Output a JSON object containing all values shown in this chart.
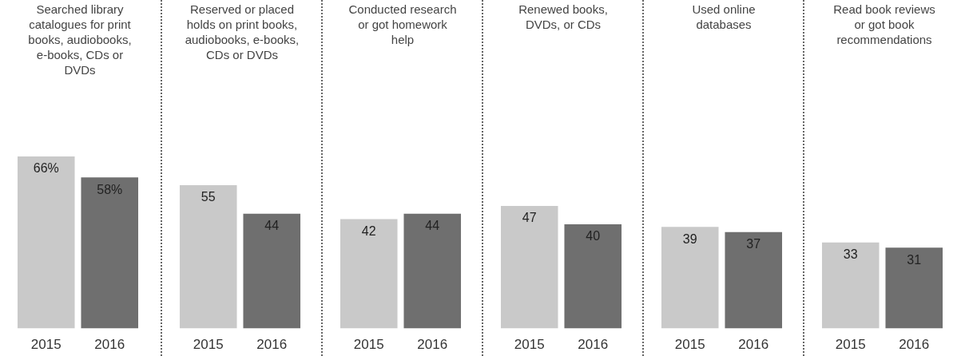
{
  "chart_data": [
    {
      "type": "bar",
      "title": "Searched library catalogues for print books, audiobooks, e-books, CDs or DVDs",
      "categories": [
        "2015",
        "2016"
      ],
      "values": [
        66,
        58
      ],
      "value_labels": [
        "66%",
        "58%"
      ],
      "colors": [
        "#c9c9c9",
        "#6f6f6f"
      ]
    },
    {
      "type": "bar",
      "title": "Reserved or placed holds on print books, audiobooks, e-books, CDs or DVDs",
      "categories": [
        "2015",
        "2016"
      ],
      "values": [
        55,
        44
      ],
      "value_labels": [
        "55",
        "44"
      ],
      "colors": [
        "#c9c9c9",
        "#6f6f6f"
      ]
    },
    {
      "type": "bar",
      "title": "Conducted research or got homework help",
      "categories": [
        "2015",
        "2016"
      ],
      "values": [
        42,
        44
      ],
      "value_labels": [
        "42",
        "44"
      ],
      "colors": [
        "#c9c9c9",
        "#6f6f6f"
      ]
    },
    {
      "type": "bar",
      "title": "Renewed books, DVDs, or CDs",
      "categories": [
        "2015",
        "2016"
      ],
      "values": [
        47,
        40
      ],
      "value_labels": [
        "47",
        "40"
      ],
      "colors": [
        "#c9c9c9",
        "#6f6f6f"
      ]
    },
    {
      "type": "bar",
      "title": "Used online databases",
      "categories": [
        "2015",
        "2016"
      ],
      "values": [
        39,
        37
      ],
      "value_labels": [
        "39",
        "37"
      ],
      "colors": [
        "#c9c9c9",
        "#6f6f6f"
      ]
    },
    {
      "type": "bar",
      "title": "Read book reviews or got book recommendations",
      "categories": [
        "2015",
        "2016"
      ],
      "values": [
        33,
        31
      ],
      "value_labels": [
        "33",
        "31"
      ],
      "colors": [
        "#c9c9c9",
        "#6f6f6f"
      ]
    }
  ]
}
